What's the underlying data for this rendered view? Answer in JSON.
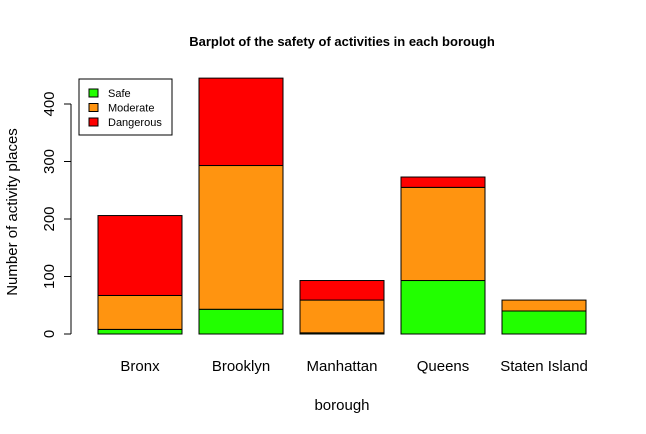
{
  "chart_data": {
    "type": "bar",
    "stacked": true,
    "title": "Barplot of the safety of activities in each borough",
    "xlabel": "borough",
    "ylabel": "Number of activity places",
    "categories": [
      "Bronx",
      "Brooklyn",
      "Manhattan",
      "Queens",
      "Staten Island"
    ],
    "series": [
      {
        "name": "Safe",
        "color": "#22ff00",
        "values": [
          8,
          43,
          2,
          93,
          40
        ]
      },
      {
        "name": "Moderate",
        "color": "#ff9410",
        "values": [
          59,
          250,
          57,
          162,
          19
        ]
      },
      {
        "name": "Dangerous",
        "color": "#ff0000",
        "values": [
          139,
          152,
          34,
          18,
          0
        ]
      }
    ],
    "yticks": [
      "0",
      "100",
      "200",
      "300",
      "400"
    ],
    "ylim": [
      0,
      445
    ],
    "legend_position": "top-left",
    "grid": false
  }
}
